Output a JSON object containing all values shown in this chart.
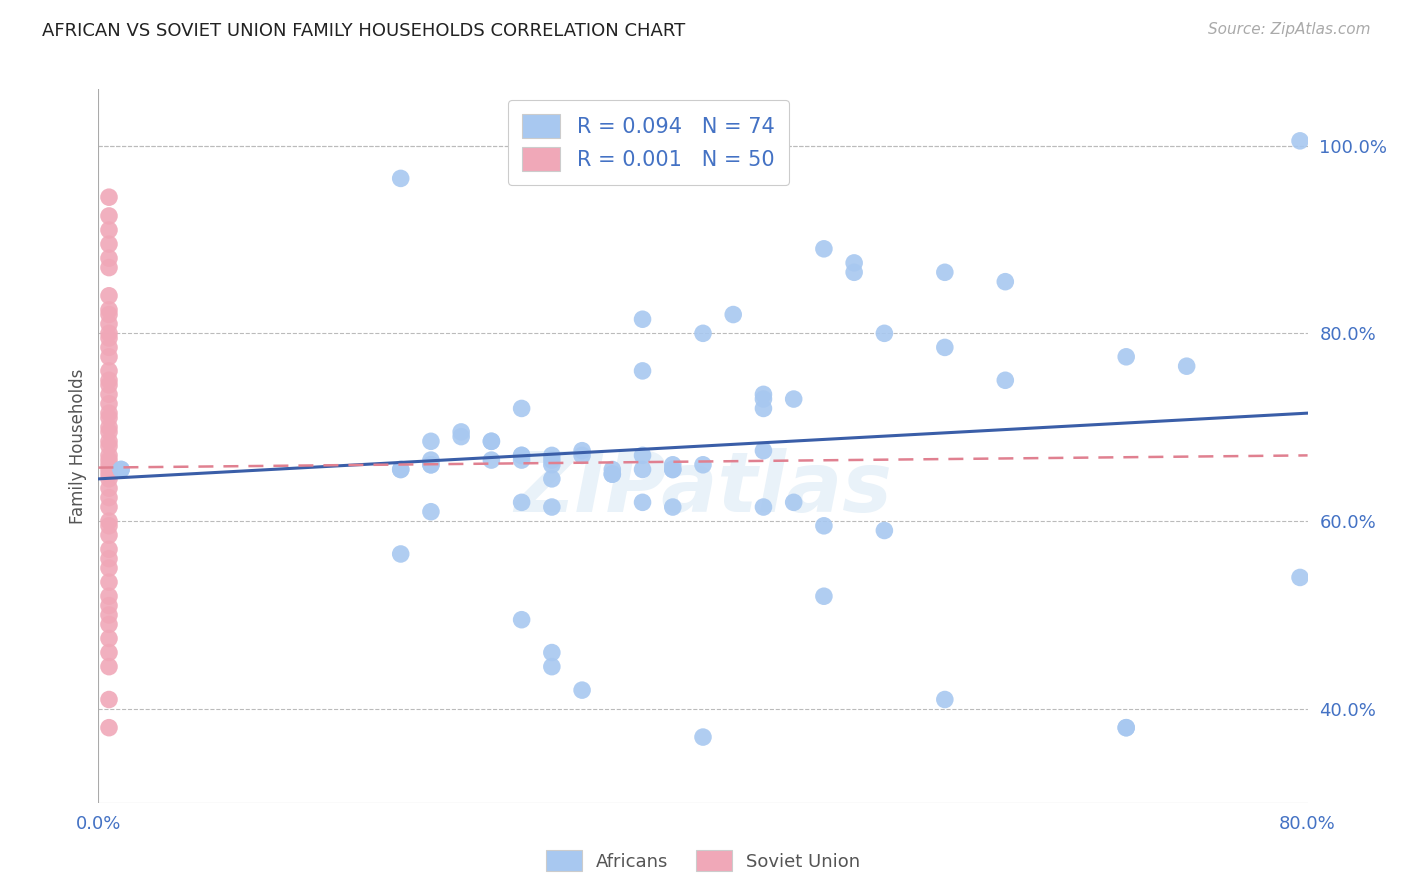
{
  "title": "AFRICAN VS SOVIET UNION FAMILY HOUSEHOLDS CORRELATION CHART",
  "source": "Source: ZipAtlas.com",
  "ylabel": "Family Households",
  "ytick_labels": [
    "40.0%",
    "60.0%",
    "80.0%",
    "100.0%"
  ],
  "ytick_values": [
    0.4,
    0.6,
    0.8,
    1.0
  ],
  "xlim": [
    0.0,
    0.8
  ],
  "ylim": [
    0.3,
    1.06
  ],
  "watermark": "ZIPatlas",
  "blue_color": "#a8c8f0",
  "pink_color": "#f0a8b8",
  "blue_line_color": "#3a5ea8",
  "pink_line_color": "#e08090",
  "axis_label_color": "#4472c4",
  "africans_x": [
    0.2,
    0.48,
    0.5,
    0.56,
    0.6,
    0.56,
    0.68,
    0.795,
    0.5,
    0.42,
    0.52,
    0.36,
    0.4,
    0.44,
    0.44,
    0.46,
    0.44,
    0.36,
    0.2,
    0.28,
    0.22,
    0.24,
    0.26,
    0.28,
    0.28,
    0.3,
    0.32,
    0.3,
    0.3,
    0.26,
    0.24,
    0.22,
    0.22,
    0.2,
    0.2,
    0.22,
    0.26,
    0.28,
    0.32,
    0.36,
    0.38,
    0.38,
    0.36,
    0.34,
    0.34,
    0.4,
    0.38,
    0.34,
    0.3,
    0.22,
    0.28,
    0.3,
    0.36,
    0.38,
    0.44,
    0.46,
    0.44,
    0.48,
    0.52,
    0.56,
    0.68,
    0.795,
    0.68,
    0.72,
    0.6,
    0.48,
    0.28,
    0.3,
    0.3,
    0.32,
    0.4,
    0.015,
    0.015
  ],
  "africans_y": [
    0.965,
    0.89,
    0.875,
    0.865,
    0.855,
    0.785,
    0.775,
    1.005,
    0.865,
    0.82,
    0.8,
    0.815,
    0.8,
    0.735,
    0.73,
    0.73,
    0.72,
    0.76,
    0.565,
    0.72,
    0.685,
    0.69,
    0.685,
    0.67,
    0.665,
    0.67,
    0.675,
    0.665,
    0.66,
    0.685,
    0.695,
    0.665,
    0.66,
    0.655,
    0.655,
    0.66,
    0.665,
    0.67,
    0.67,
    0.67,
    0.66,
    0.655,
    0.655,
    0.655,
    0.65,
    0.66,
    0.655,
    0.65,
    0.645,
    0.61,
    0.62,
    0.615,
    0.62,
    0.615,
    0.675,
    0.62,
    0.615,
    0.595,
    0.59,
    0.41,
    0.38,
    0.54,
    0.38,
    0.765,
    0.75,
    0.52,
    0.495,
    0.46,
    0.445,
    0.42,
    0.37,
    0.655,
    0.655
  ],
  "soviet_x": [
    0.007,
    0.007,
    0.007,
    0.007,
    0.007,
    0.007,
    0.007,
    0.007,
    0.007,
    0.007,
    0.007,
    0.007,
    0.007,
    0.007,
    0.007,
    0.007,
    0.007,
    0.007,
    0.007,
    0.007,
    0.007,
    0.007,
    0.007,
    0.007,
    0.007,
    0.007,
    0.007,
    0.007,
    0.007,
    0.007,
    0.007,
    0.007,
    0.007,
    0.007,
    0.007,
    0.007,
    0.007,
    0.007,
    0.007,
    0.007,
    0.007,
    0.007,
    0.007,
    0.007,
    0.007,
    0.007,
    0.007,
    0.007,
    0.007,
    0.007
  ],
  "soviet_y": [
    0.945,
    0.925,
    0.91,
    0.895,
    0.88,
    0.87,
    0.84,
    0.825,
    0.82,
    0.81,
    0.8,
    0.795,
    0.785,
    0.775,
    0.76,
    0.75,
    0.745,
    0.735,
    0.725,
    0.715,
    0.71,
    0.7,
    0.695,
    0.685,
    0.68,
    0.67,
    0.665,
    0.66,
    0.655,
    0.65,
    0.645,
    0.635,
    0.625,
    0.615,
    0.6,
    0.595,
    0.585,
    0.57,
    0.56,
    0.55,
    0.535,
    0.52,
    0.51,
    0.5,
    0.49,
    0.475,
    0.46,
    0.445,
    0.41,
    0.38
  ],
  "blue_trend_x": [
    0.0,
    0.8
  ],
  "blue_trend_y": [
    0.645,
    0.715
  ],
  "pink_trend_x": [
    0.0,
    0.8
  ],
  "pink_trend_y": [
    0.657,
    0.67
  ],
  "grid_color": "#bbbbbb",
  "background_color": "#ffffff"
}
